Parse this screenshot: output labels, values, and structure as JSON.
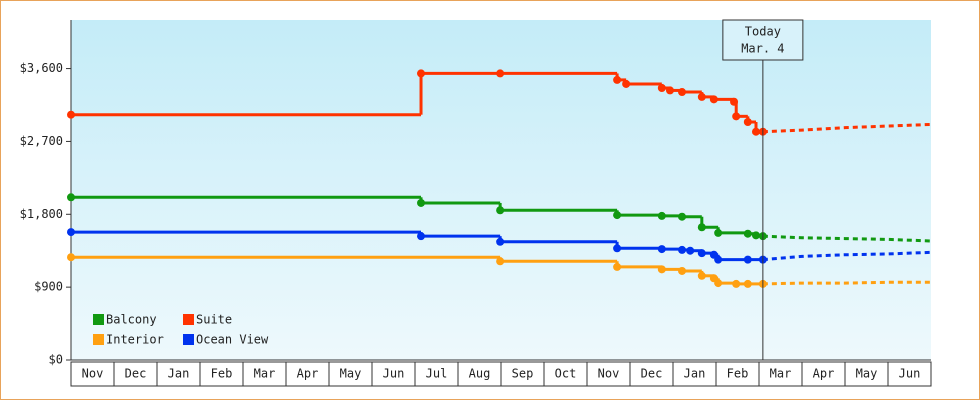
{
  "chart_data": {
    "type": "step-line",
    "categories": [
      "Nov",
      "Dec",
      "Jan",
      "Feb",
      "Mar",
      "Apr",
      "May",
      "Jun",
      "Jul",
      "Aug",
      "Sep",
      "Oct",
      "Nov",
      "Dec",
      "Jan",
      "Feb",
      "Mar",
      "Apr",
      "May",
      "Jun"
    ],
    "xlim": [
      0,
      20
    ],
    "ylim": [
      0,
      4200
    ],
    "yticks": [
      {
        "value": 0,
        "label": "$0"
      },
      {
        "value": 900,
        "label": "$900"
      },
      {
        "value": 1800,
        "label": "$1,800"
      },
      {
        "value": 2700,
        "label": "$2,700"
      },
      {
        "value": 3600,
        "label": "$3,600"
      }
    ],
    "annotation": {
      "lines": [
        "Today",
        "Mar. 4"
      ],
      "x": 16.09
    },
    "series": [
      {
        "name": "Balcony",
        "color": "#119911",
        "x": [
          0,
          8.14,
          9.98,
          12.7,
          13.74,
          14.21,
          14.67,
          15.05,
          15.74,
          15.93,
          16.09
        ],
        "values": [
          2010,
          1940,
          1850,
          1790,
          1780,
          1770,
          1640,
          1570,
          1560,
          1540,
          1530
        ],
        "forecast": {
          "x": [
            16.09,
            17,
            18,
            19,
            20
          ],
          "values": [
            1530,
            1510,
            1500,
            1490,
            1470
          ]
        }
      },
      {
        "name": "Suite",
        "color": "#ff3300",
        "x": [
          0,
          8.14,
          9.98,
          12.7,
          12.91,
          13.74,
          13.93,
          14.21,
          14.67,
          14.95,
          15.42,
          15.47,
          15.74,
          15.93,
          16.09
        ],
        "values": [
          3030,
          3540,
          3540,
          3460,
          3410,
          3360,
          3330,
          3310,
          3250,
          3220,
          3190,
          3010,
          2940,
          2820,
          2820
        ],
        "forecast": {
          "x": [
            16.09,
            17,
            18,
            19,
            20
          ],
          "values": [
            2820,
            2840,
            2870,
            2890,
            2910
          ]
        }
      },
      {
        "name": "Interior",
        "color": "#ffa011",
        "x": [
          0,
          9.98,
          12.7,
          13.74,
          14.21,
          14.67,
          14.95,
          15.05,
          15.47,
          15.74,
          16.09
        ],
        "values": [
          1270,
          1220,
          1150,
          1120,
          1100,
          1040,
          1010,
          950,
          940,
          940,
          940
        ],
        "forecast": {
          "x": [
            16.09,
            17,
            18,
            19,
            20
          ],
          "values": [
            940,
            950,
            950,
            960,
            960
          ]
        }
      },
      {
        "name": "Ocean View",
        "color": "#0033ee",
        "x": [
          0,
          8.14,
          9.98,
          12.7,
          13.74,
          14.21,
          14.4,
          14.67,
          14.95,
          15.05,
          15.74,
          16.09
        ],
        "values": [
          1580,
          1530,
          1460,
          1380,
          1370,
          1360,
          1350,
          1320,
          1300,
          1240,
          1240,
          1240
        ],
        "forecast": {
          "x": [
            16.09,
            17,
            18,
            19,
            20
          ],
          "values": [
            1240,
            1280,
            1300,
            1310,
            1330
          ]
        }
      }
    ]
  }
}
